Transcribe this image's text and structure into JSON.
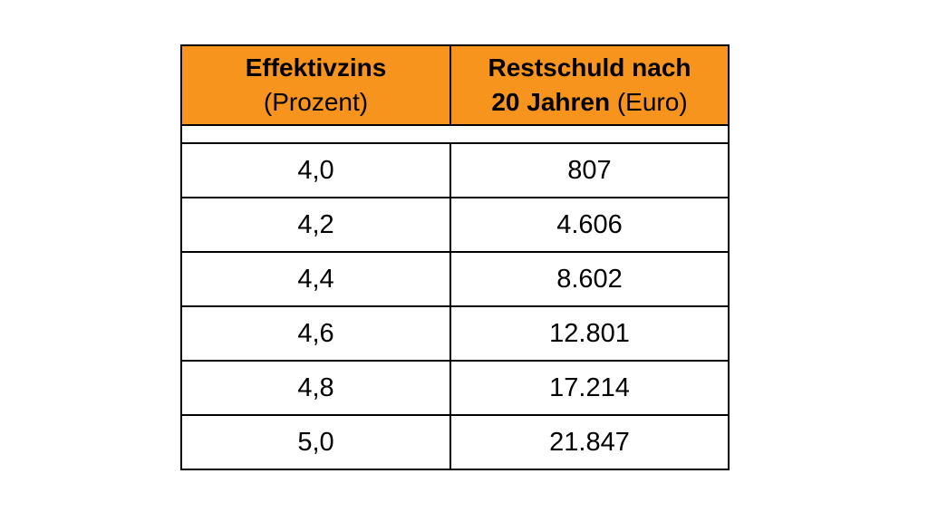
{
  "table": {
    "header": {
      "col1_line1": "Effektivzins",
      "col1_line2": "(Prozent)",
      "col2_line1": "Restschuld nach",
      "col2_line2_bold": "20 Jahren",
      "col2_line2_rest": " (Euro)"
    },
    "rows": [
      {
        "rate": "4,0",
        "debt": "807"
      },
      {
        "rate": "4,2",
        "debt": "4.606"
      },
      {
        "rate": "4,4",
        "debt": "8.602"
      },
      {
        "rate": "4,6",
        "debt": "12.801"
      },
      {
        "rate": "4,8",
        "debt": "17.214"
      },
      {
        "rate": "5,0",
        "debt": "21.847"
      }
    ]
  },
  "colors": {
    "header_background": "#f7941d",
    "border": "#000000"
  }
}
